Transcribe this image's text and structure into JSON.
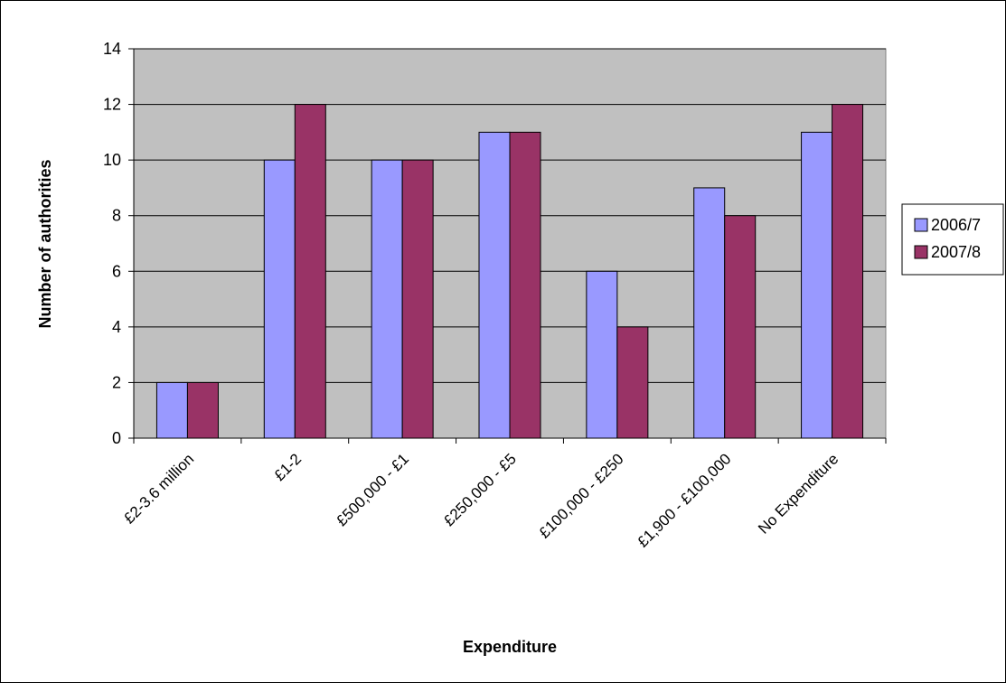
{
  "chart_data": {
    "type": "bar",
    "title": "",
    "xlabel": "Expenditure",
    "ylabel": "Number of authorities",
    "categories": [
      "£2-3.6 million",
      "£1-2",
      "£500,000 - £1",
      "£250,000 - £5",
      "£100,000 - £250",
      "£1,900 - £100,000",
      "No Expenditure"
    ],
    "series": [
      {
        "name": "2006/7",
        "values": [
          2,
          10,
          10,
          11,
          6,
          9,
          11
        ],
        "color": "#9999ff"
      },
      {
        "name": "2007/8",
        "values": [
          2,
          12,
          10,
          11,
          4,
          8,
          12
        ],
        "color": "#993366"
      }
    ],
    "ylim": [
      0,
      14
    ],
    "yticks": [
      0,
      2,
      4,
      6,
      8,
      10,
      12,
      14
    ],
    "grid": true,
    "plot_background": "#c0c0c0",
    "legend_position": "right"
  }
}
